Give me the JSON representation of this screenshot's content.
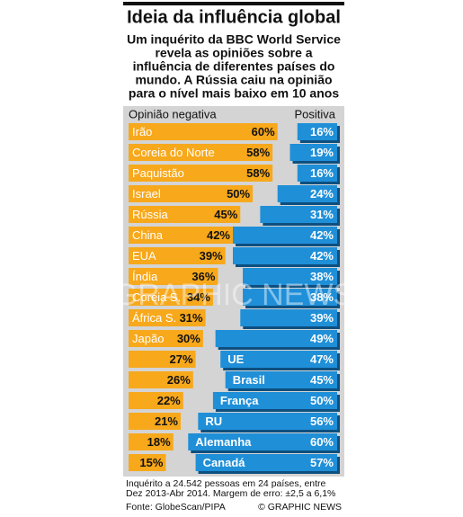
{
  "chart_data": {
    "type": "diverging_bar",
    "title": "Ideia da influência global",
    "subtitle": [
      "Um inquérito da BBC World Service",
      "revela as opiniões sobre a",
      "influência de diferentes países do",
      "mundo. A Rússia caiu na opinião",
      "para o nível mais baixo em 10 anos"
    ],
    "categories": [
      "Irão",
      "Coreia do Norte",
      "Paquistão",
      "Israel",
      "Rússia",
      "China",
      "EUA",
      "Índia",
      "Coreia S.",
      "África S.",
      "Japão",
      "UE",
      "Brasil",
      "França",
      "RU",
      "Alemanha",
      "Canadá"
    ],
    "series": [
      {
        "name": "Opinião negativa",
        "color": "#f7a81b",
        "values": [
          60,
          58,
          58,
          50,
          45,
          42,
          39,
          36,
          34,
          31,
          30,
          27,
          26,
          22,
          21,
          18,
          15
        ],
        "value_labels": [
          "60%",
          "58%",
          "58%",
          "50%",
          "45%",
          "42%",
          "39%",
          "36%",
          "34%",
          "31%",
          "30%",
          "27%",
          "26%",
          "22%",
          "21%",
          "18%",
          "15%"
        ]
      },
      {
        "name": "Positiva",
        "color": "#1f8fd8",
        "values": [
          16,
          19,
          16,
          24,
          31,
          42,
          42,
          38,
          38,
          39,
          49,
          47,
          45,
          50,
          56,
          60,
          57
        ],
        "value_labels": [
          "16%",
          "19%",
          "16%",
          "24%",
          "31%",
          "42%",
          "42%",
          "38%",
          "38%",
          "39%",
          "49%",
          "47%",
          "45%",
          "50%",
          "56%",
          "60%",
          "57%"
        ]
      }
    ],
    "note": [
      "Inquérito a 24.542 pessoas em 24 países, entre",
      "Dez 2013-Abr 2014. Margem de erro: ±2,5 a 6,1%"
    ],
    "source": "Fonte: GlobeScan/PIPA",
    "credit": "© GRAPHIC NEWS",
    "watermark": "GRAPHIC NEWS"
  }
}
